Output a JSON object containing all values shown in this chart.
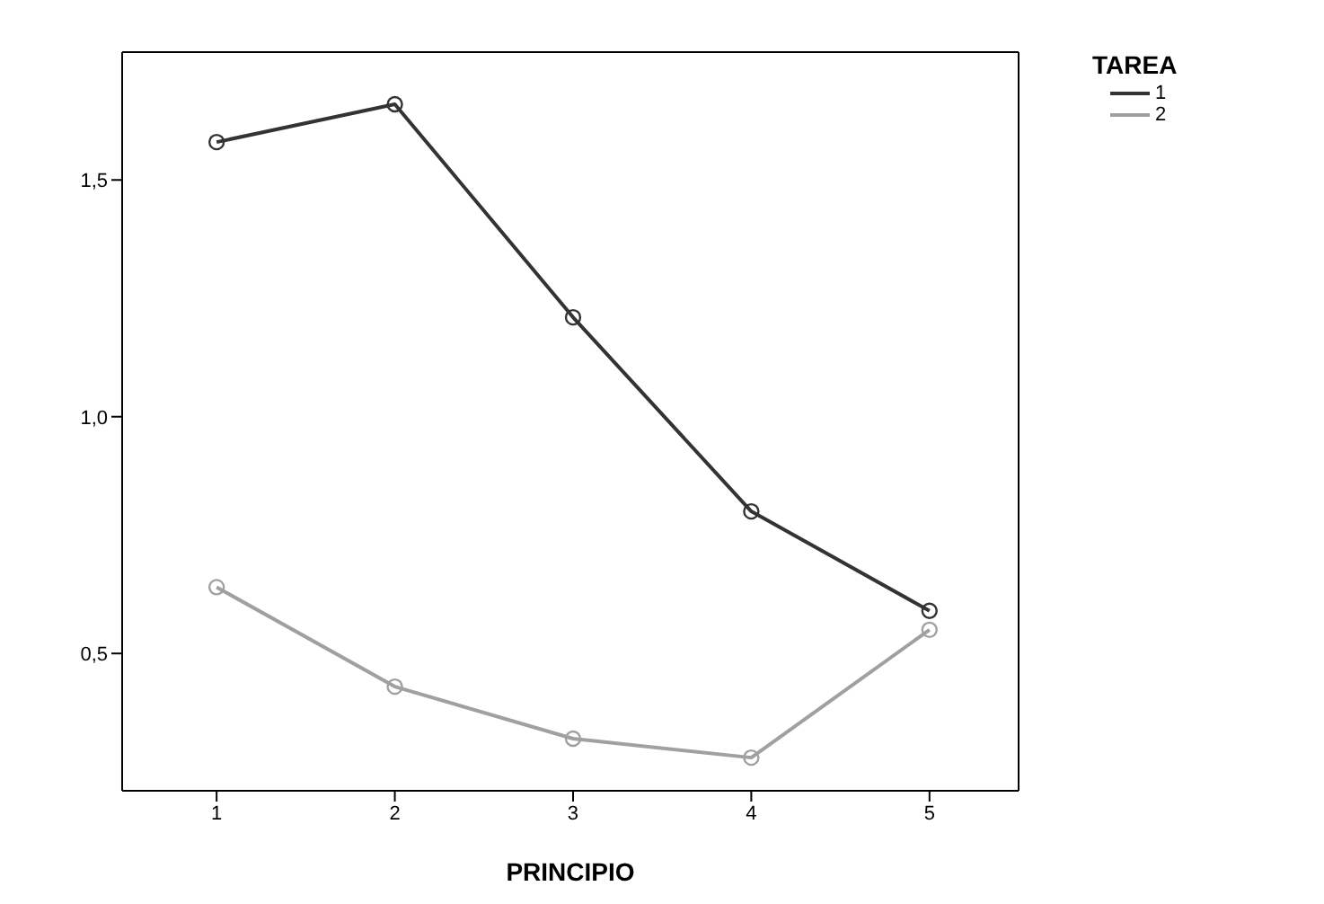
{
  "chart_data": {
    "type": "line",
    "xlabel": "PRINCIPIO",
    "legend_title": "TAREA",
    "x": [
      1,
      2,
      3,
      4,
      5
    ],
    "series": [
      {
        "name": "1",
        "color": "#333333",
        "values": [
          1.58,
          1.66,
          1.21,
          0.8,
          0.59
        ]
      },
      {
        "name": "2",
        "color": "#a0a0a0",
        "values": [
          0.64,
          0.43,
          0.32,
          0.28,
          0.55
        ]
      }
    ],
    "xlim": [
      0.47,
      5.5
    ],
    "xticks": [
      1,
      2,
      3,
      4,
      5
    ],
    "ylim": [
      0.21,
      1.77
    ],
    "yticks": [
      {
        "value": 0.5,
        "label": "0,5"
      },
      {
        "value": 1,
        "label": "1,0"
      },
      {
        "value": 1.5,
        "label": "1,5"
      }
    ],
    "grid": false,
    "legend": "top right",
    "marker": "circle",
    "line_style": "solid"
  }
}
